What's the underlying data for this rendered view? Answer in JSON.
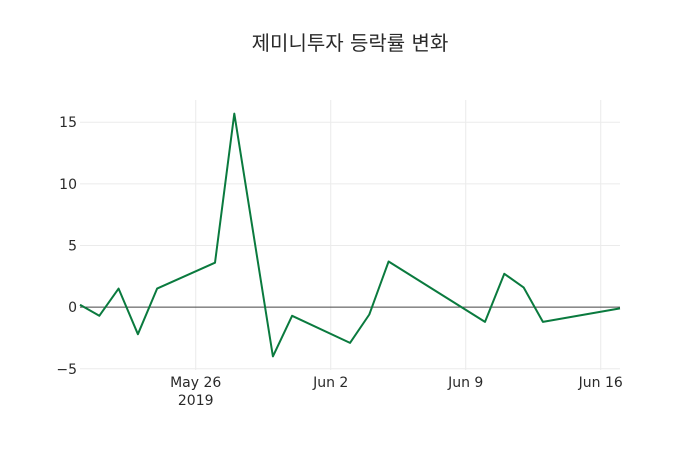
{
  "chart_data": {
    "type": "line",
    "title": "제미니투자 등락률 변화",
    "xlabel": "",
    "ylabel": "",
    "x": [
      "2019-05-20",
      "2019-05-21",
      "2019-05-22",
      "2019-05-23",
      "2019-05-24",
      "2019-05-27",
      "2019-05-28",
      "2019-05-30",
      "2019-05-31",
      "2019-06-03",
      "2019-06-04",
      "2019-06-05",
      "2019-06-10",
      "2019-06-11",
      "2019-06-12",
      "2019-06-13",
      "2019-06-17"
    ],
    "series": [
      {
        "name": "등락률",
        "color": "#0a7a3e",
        "values": [
          0.2,
          -0.7,
          1.5,
          -2.2,
          1.5,
          3.6,
          15.7,
          -4.0,
          -0.7,
          -2.9,
          -0.6,
          3.7,
          -1.2,
          2.7,
          1.6,
          -1.2,
          -0.1
        ]
      }
    ],
    "xlim": [
      "2019-05-20",
      "2019-06-17"
    ],
    "ylim": [
      -5.1,
      16.8
    ],
    "yticks": [
      -5,
      0,
      5,
      10,
      15
    ],
    "ytick_labels": [
      "−5",
      "0",
      "5",
      "10",
      "15"
    ],
    "xticks": [
      "2019-05-26",
      "2019-06-02",
      "2019-06-09",
      "2019-06-16"
    ],
    "xtick_labels": [
      "May 26",
      "Jun 2",
      "Jun 9",
      "Jun 16"
    ],
    "xtick_sublabel": "2019",
    "grid": true,
    "legend": "none"
  }
}
